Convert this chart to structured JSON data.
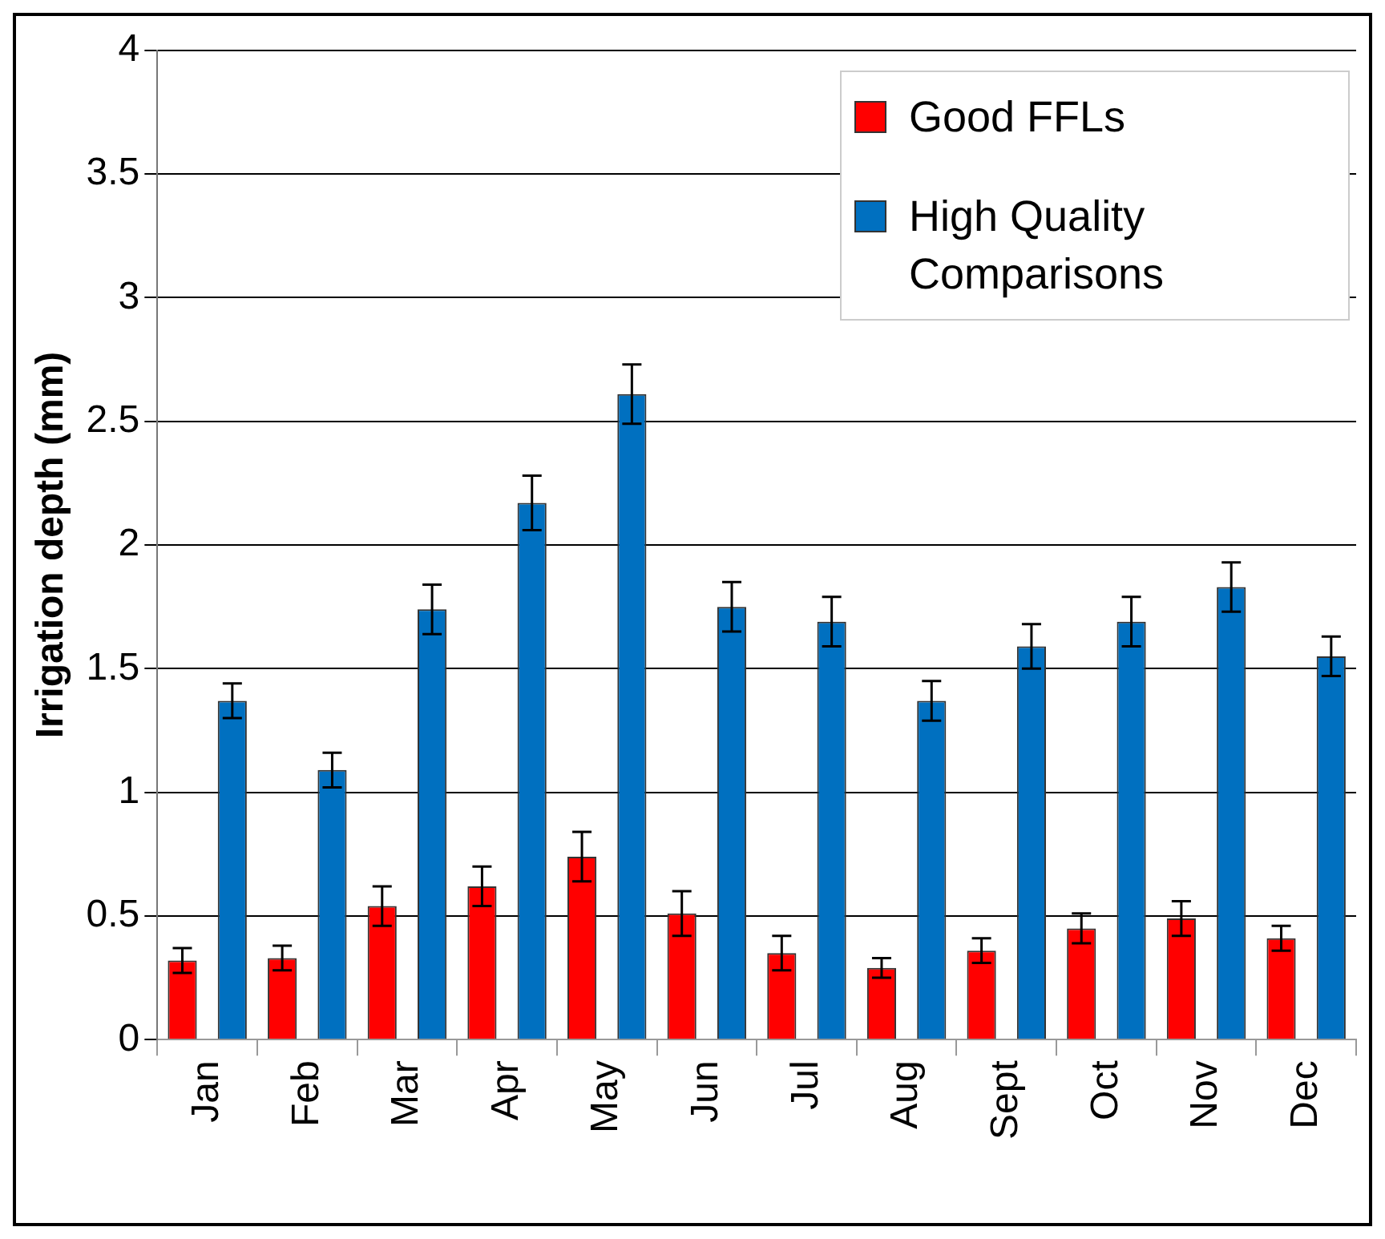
{
  "chart_data": {
    "type": "bar",
    "ylabel": "Irrigation depth (mm)",
    "categories": [
      "Jan",
      "Feb",
      "Mar",
      "Apr",
      "May",
      "Jun",
      "Jul",
      "Aug",
      "Sept",
      "Oct",
      "Nov",
      "Dec"
    ],
    "series": [
      {
        "name": "Good FFLs",
        "color": "#ff0000",
        "values": [
          0.32,
          0.33,
          0.54,
          0.62,
          0.74,
          0.51,
          0.35,
          0.29,
          0.36,
          0.45,
          0.49,
          0.41
        ],
        "errors": [
          0.05,
          0.05,
          0.08,
          0.08,
          0.1,
          0.09,
          0.07,
          0.04,
          0.05,
          0.06,
          0.07,
          0.05
        ]
      },
      {
        "name": "High Quality Comparisons",
        "color": "#0070c0",
        "values": [
          1.37,
          1.09,
          1.74,
          2.17,
          2.61,
          1.75,
          1.69,
          1.37,
          1.59,
          1.69,
          1.83,
          1.55
        ],
        "errors": [
          0.07,
          0.07,
          0.1,
          0.11,
          0.12,
          0.1,
          0.1,
          0.08,
          0.09,
          0.1,
          0.1,
          0.08
        ]
      }
    ],
    "ylim": [
      0,
      4
    ],
    "yticks": [
      0,
      0.5,
      1,
      1.5,
      2,
      2.5,
      3,
      3.5,
      4
    ],
    "grid": "y",
    "legend": "top right"
  }
}
